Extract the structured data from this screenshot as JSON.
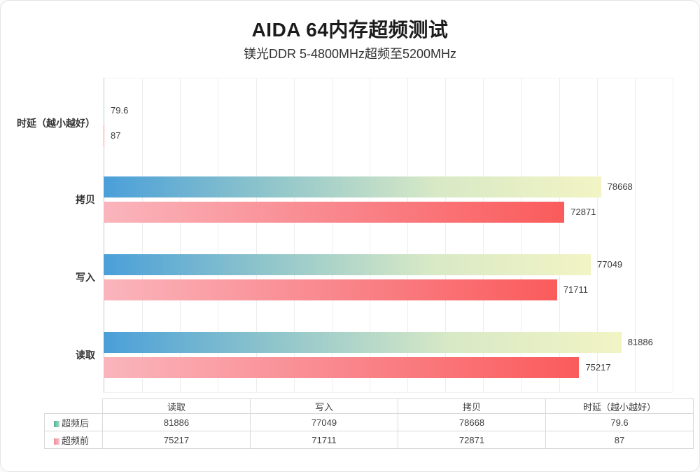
{
  "chart_data": {
    "type": "bar",
    "orientation": "horizontal",
    "title": "AIDA 64内存超频测试",
    "subtitle": "镁光DDR 5-4800MHz超频至5200MHz",
    "categories_top_to_bottom": [
      "时延（越小越好）",
      "拷贝",
      "写入",
      "读取"
    ],
    "series": [
      {
        "name": "超频后",
        "values_by_category": [
          79.6,
          78668,
          77049,
          81886
        ],
        "bar_gradient": [
          "#4a9fd9",
          "#8fc5cb",
          "#d8e9c6",
          "#f2f4c4"
        ],
        "legend_gradient": [
          "#52b29a",
          "#a9d9ca"
        ]
      },
      {
        "name": "超频前",
        "values_by_category": [
          87,
          72871,
          71711,
          75217
        ],
        "bar_gradient": [
          "#fab5bc",
          "#f9878d",
          "#fa5b5b"
        ],
        "legend_gradient": [
          "#ec8f9b",
          "#f6c3c9"
        ]
      }
    ],
    "xlim": [
      0,
      90000
    ],
    "gridline_divisions": 15,
    "grid": true,
    "value_labels_shown": true,
    "legend_position": "left column of data table"
  },
  "table": {
    "corner_label": "",
    "columns": [
      "读取",
      "写入",
      "拷贝",
      "时延（越小越好）"
    ],
    "rows": [
      {
        "legend": "超频后",
        "values": [
          "81886",
          "77049",
          "78668",
          "79.6"
        ]
      },
      {
        "legend": "超频前",
        "values": [
          "75217",
          "71711",
          "72871",
          "87"
        ]
      }
    ]
  },
  "colors": {
    "axis_line": "#c9c9c9",
    "gridline": "#ededed",
    "table_border": "#d9d9d9",
    "value_text": "#3d3d3d",
    "title_text": "#1c1c1c"
  }
}
